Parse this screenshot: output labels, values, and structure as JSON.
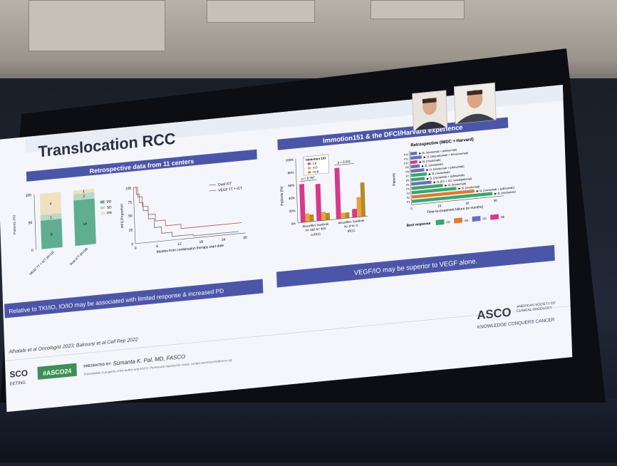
{
  "slide": {
    "title": "Translocation RCC",
    "left_banner": "Retrospective data from 11 centers",
    "right_banner": "Immotion151 & the DFCI/Harvard experience",
    "left_conclusion": "Relative to TKI/IO, IO/IO may be associated with limited response & increased PD",
    "right_conclusion": "VEGF/IO may be superior to VEGF alone.",
    "reference": "Alhalabi et al Oncologist 2023; Bakouny et al Cell Rep 2022",
    "hashtag": "#ASCO24",
    "presented_by_label": "PRESENTED BY:",
    "presenter": "Sumanta K. Pal, MD, FASCO",
    "disclaimer": "Presentation is property of the author and ASCO. Permission required for reuse; contact permissions@asco.org",
    "asco_left_top": "SCO",
    "asco_left_bottom": "EETING",
    "asco_logo": "ASCO",
    "asco_society_line1": "AMERICAN SOCIETY OF",
    "asco_society_line2": "CLINICAL ONCOLOGY",
    "asco_tagline": "KNOWLEDGE CONQUERS CANCER"
  },
  "bar_chart_1": {
    "ylabel": "Patients (%)",
    "y_ticks": [
      "100",
      "50",
      "0"
    ],
    "legend": [
      "PD",
      "SD",
      "PR"
    ],
    "categories": [
      "VEGF TT + ICT (N=11)",
      "Dual ICT (N=18)"
    ],
    "segment_labels": [
      [
        "4",
        "1",
        "6"
      ],
      [
        "1",
        "2",
        "14"
      ]
    ]
  },
  "km_chart": {
    "ylabel": "PFS Proportion",
    "xlabel": "Months from combination therapy start date",
    "x_ticks": [
      "0",
      "6",
      "12",
      "18",
      "24",
      "30"
    ],
    "y_ticks": [
      "100",
      "75",
      "50",
      "25",
      "0"
    ],
    "legend": [
      "Dual ICT",
      "VEGF TT + ICT"
    ]
  },
  "bar_chart_2": {
    "ylabel": "Patients (%)",
    "legend_title": "Immotion 151",
    "legend": [
      "CB",
      "ICD",
      "NCB"
    ],
    "y_ticks": [
      "100%",
      "80%",
      "60%",
      "40%",
      "20%",
      "0%"
    ],
    "pvalues": [
      "p = 0.767",
      "p = 0.041"
    ],
    "group_labels": [
      "Atezo/Bev Sunitinib",
      "Atezo/Bev Sunitinib"
    ],
    "group_ns": [
      "N= 382   N= 403",
      "N= 9      N= 6"
    ],
    "categories": [
      "ccRCC",
      "tRCC"
    ]
  },
  "swimmer_chart": {
    "title": "Retrospective (IMDC + Harvard)",
    "ylabel": "Patients",
    "xlabel": "Time-to-treatment failure (in months)",
    "x_ticks": [
      "0",
      "10",
      "20",
      "30"
    ],
    "patients": [
      "P12",
      "P11",
      "P10",
      "P9",
      "P8",
      "P7",
      "P6",
      "P5",
      "P4",
      "P3",
      "P2",
      "P1"
    ],
    "rows": [
      "2L (nivolumab + ipilimumab)",
      "1L (atezolizumab + bevacizumab)",
      "6L (nivolumab)",
      "2L (nivolumab)",
      "1L (nivolumab + ipilimumab)",
      "2L (nivolumab)",
      "1L (nivolumab + ipilimumab)",
      "3L (ICI + ICI; investigational)",
      "2L (nivolumab)",
      "2L (nivolumab)",
      "1L (nivolumab + ipilimumab)",
      "2L (nivolumab)"
    ],
    "best_response_label": "Best response",
    "responses": [
      "PR",
      "SD",
      "PD",
      "NE"
    ],
    "colors": {
      "PR": "#3aa56a",
      "SD": "#e07a2e",
      "PD": "#6a6fb8",
      "NE": "#d8398a"
    }
  }
}
